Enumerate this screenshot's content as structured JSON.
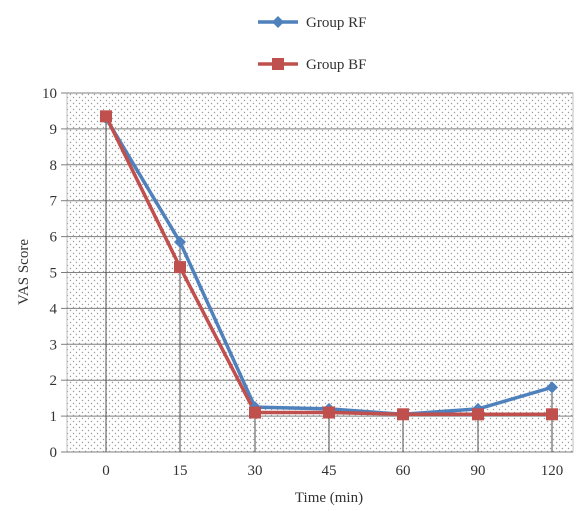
{
  "chart_data": {
    "type": "line",
    "categories": [
      "0",
      "15",
      "30",
      "45",
      "60",
      "90",
      "120"
    ],
    "series": [
      {
        "name": "Group RF",
        "values": [
          9.3,
          5.85,
          1.25,
          1.2,
          1.05,
          1.2,
          1.8
        ],
        "color": "#4f81bd",
        "marker": "diamond"
      },
      {
        "name": "Group BF",
        "values": [
          9.35,
          5.15,
          1.1,
          1.1,
          1.05,
          1.05,
          1.05
        ],
        "color": "#c0504d",
        "marker": "square"
      }
    ],
    "xlabel": "Time (min)",
    "ylabel": "VAS Score",
    "ylim": [
      0,
      10
    ],
    "yticks": [
      0,
      1,
      2,
      3,
      4,
      5,
      6,
      7,
      8,
      9,
      10
    ],
    "grid": true,
    "legend_position": "top-center",
    "plot_background": "dotted"
  }
}
